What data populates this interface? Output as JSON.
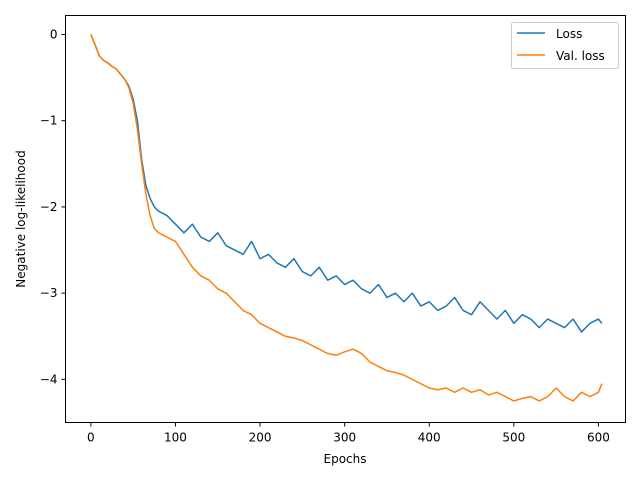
{
  "chart_data": {
    "type": "line",
    "title": "",
    "xlabel": "Epochs",
    "ylabel": "Negative log-likelihood",
    "xlim": [
      -30,
      632
    ],
    "ylim": [
      -4.5,
      0.22
    ],
    "xticks": [
      0,
      100,
      200,
      300,
      400,
      500,
      600
    ],
    "yticks": [
      0,
      -1,
      -2,
      -3,
      -4
    ],
    "xtick_labels": [
      "0",
      "100",
      "200",
      "300",
      "400",
      "500",
      "600"
    ],
    "ytick_labels": [
      "0",
      "−1",
      "−2",
      "−3",
      "−4"
    ],
    "grid": false,
    "legend_position": "top-right",
    "series": [
      {
        "name": "Loss",
        "color": "#1f77b4",
        "x": [
          0,
          5,
          10,
          15,
          20,
          25,
          30,
          35,
          40,
          45,
          50,
          55,
          60,
          65,
          70,
          75,
          80,
          90,
          100,
          110,
          120,
          130,
          140,
          150,
          160,
          170,
          180,
          190,
          200,
          210,
          220,
          230,
          240,
          250,
          260,
          270,
          280,
          290,
          300,
          310,
          320,
          330,
          340,
          350,
          360,
          370,
          380,
          390,
          400,
          410,
          420,
          430,
          440,
          450,
          460,
          470,
          480,
          490,
          500,
          510,
          520,
          530,
          540,
          550,
          560,
          570,
          580,
          590,
          600,
          604
        ],
        "y": [
          0.0,
          -0.12,
          -0.25,
          -0.3,
          -0.33,
          -0.37,
          -0.4,
          -0.46,
          -0.52,
          -0.6,
          -0.75,
          -1.0,
          -1.45,
          -1.75,
          -1.9,
          -2.0,
          -2.05,
          -2.1,
          -2.2,
          -2.3,
          -2.2,
          -2.35,
          -2.4,
          -2.3,
          -2.45,
          -2.5,
          -2.55,
          -2.4,
          -2.6,
          -2.55,
          -2.65,
          -2.7,
          -2.6,
          -2.75,
          -2.8,
          -2.7,
          -2.85,
          -2.8,
          -2.9,
          -2.85,
          -2.95,
          -3.0,
          -2.9,
          -3.05,
          -3.0,
          -3.1,
          -3.0,
          -3.15,
          -3.1,
          -3.2,
          -3.15,
          -3.05,
          -3.2,
          -3.25,
          -3.1,
          -3.2,
          -3.3,
          -3.2,
          -3.35,
          -3.25,
          -3.3,
          -3.4,
          -3.3,
          -3.35,
          -3.4,
          -3.3,
          -3.45,
          -3.35,
          -3.3,
          -3.35
        ]
      },
      {
        "name": "Val. loss",
        "color": "#ff7f0e",
        "x": [
          0,
          5,
          10,
          15,
          20,
          25,
          30,
          35,
          40,
          45,
          50,
          55,
          60,
          65,
          70,
          75,
          80,
          90,
          100,
          110,
          120,
          130,
          140,
          150,
          160,
          170,
          180,
          190,
          200,
          210,
          220,
          230,
          240,
          250,
          260,
          270,
          280,
          290,
          300,
          310,
          320,
          330,
          340,
          350,
          360,
          370,
          380,
          390,
          400,
          410,
          420,
          430,
          440,
          450,
          460,
          470,
          480,
          490,
          500,
          510,
          520,
          530,
          540,
          550,
          560,
          570,
          580,
          590,
          600,
          604
        ],
        "y": [
          0.0,
          -0.12,
          -0.25,
          -0.3,
          -0.33,
          -0.37,
          -0.4,
          -0.46,
          -0.52,
          -0.62,
          -0.8,
          -1.1,
          -1.5,
          -1.85,
          -2.1,
          -2.25,
          -2.3,
          -2.35,
          -2.4,
          -2.55,
          -2.7,
          -2.8,
          -2.85,
          -2.95,
          -3.0,
          -3.1,
          -3.2,
          -3.25,
          -3.35,
          -3.4,
          -3.45,
          -3.5,
          -3.52,
          -3.55,
          -3.6,
          -3.65,
          -3.7,
          -3.72,
          -3.68,
          -3.65,
          -3.7,
          -3.8,
          -3.85,
          -3.9,
          -3.92,
          -3.95,
          -4.0,
          -4.05,
          -4.1,
          -4.12,
          -4.1,
          -4.15,
          -4.1,
          -4.15,
          -4.12,
          -4.18,
          -4.15,
          -4.2,
          -4.25,
          -4.22,
          -4.2,
          -4.25,
          -4.2,
          -4.1,
          -4.2,
          -4.25,
          -4.15,
          -4.2,
          -4.15,
          -4.05
        ]
      }
    ]
  }
}
